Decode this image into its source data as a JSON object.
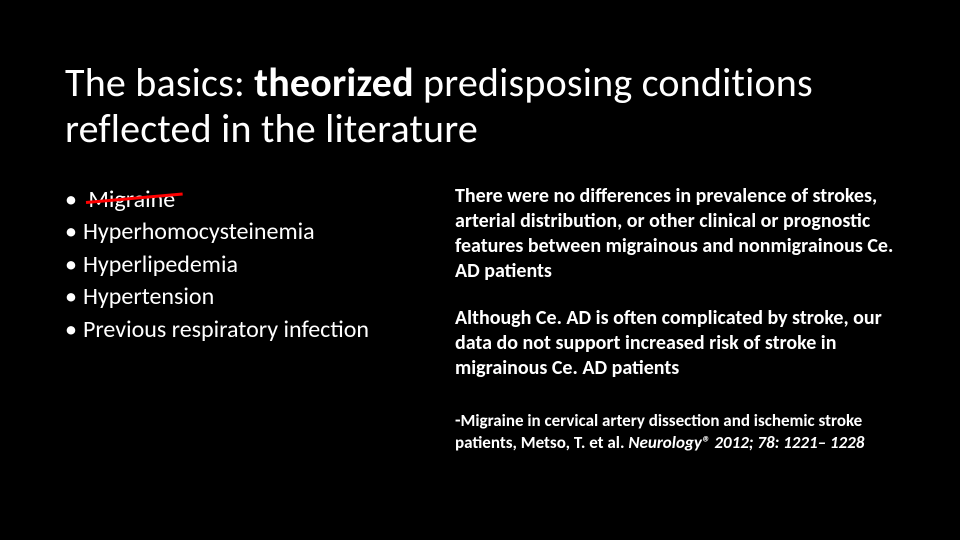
{
  "colors": {
    "background": "#000000",
    "text": "#ffffff",
    "strike": "#ff0000"
  },
  "title": {
    "pre": "The basics: ",
    "bold": "theorized",
    "post": " predisposing conditions reflected in the literature"
  },
  "bullets": {
    "b0": "Migraine",
    "b1": "Hyperhomocysteinemia",
    "b2": "Hyperlipedemia",
    "b3": "Hypertension",
    "b4": "Previous respiratory infection"
  },
  "right": {
    "p1": "There were no differences in prevalence of strokes, arterial distribution, or other clinical or prognostic features between migrainous and nonmigrainous Ce. AD patients",
    "p2": "Although Ce. AD is often complicated by stroke, our data do not support increased risk of stroke in migrainous Ce. AD patients"
  },
  "citation": {
    "dash": "-",
    "title": "Migraine in cervical artery dissection and ischemic stroke patients, Metso, T. et al. ",
    "journal": "Neurology®",
    "rest": " 2012; 78: 1221– 1228"
  }
}
